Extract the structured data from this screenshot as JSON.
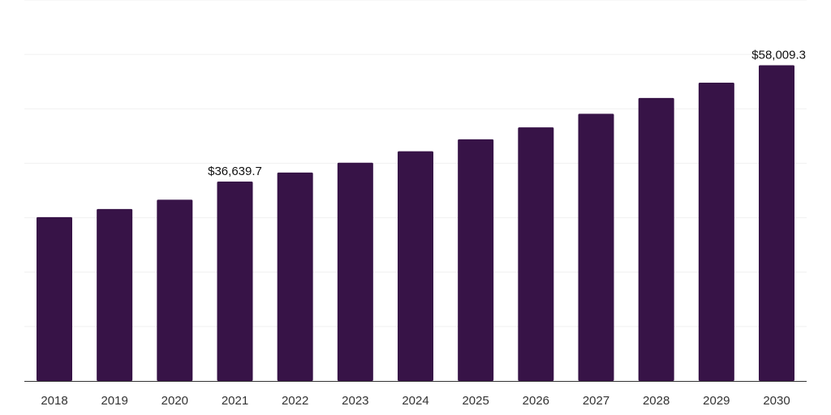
{
  "chart_data": {
    "type": "bar",
    "categories": [
      "2018",
      "2019",
      "2020",
      "2021",
      "2022",
      "2023",
      "2024",
      "2025",
      "2026",
      "2027",
      "2028",
      "2029",
      "2030"
    ],
    "values": [
      30100,
      31600,
      33300,
      36639.7,
      38300,
      40100,
      42200,
      44400,
      46600,
      49100,
      52000,
      54800,
      58009.3
    ],
    "data_labels": [
      {
        "index": 3,
        "text": "$36,639.7"
      },
      {
        "index": 12,
        "text": "$58,009.3"
      }
    ],
    "title": "",
    "xlabel": "",
    "ylabel": "",
    "ylim": [
      0,
      70000
    ],
    "y_gridlines": [
      0,
      10000,
      20000,
      30000,
      40000,
      50000,
      60000,
      70000
    ],
    "y_tick_labels_shown": false,
    "grid": true,
    "legend": "none",
    "bar_color": "#371347"
  }
}
